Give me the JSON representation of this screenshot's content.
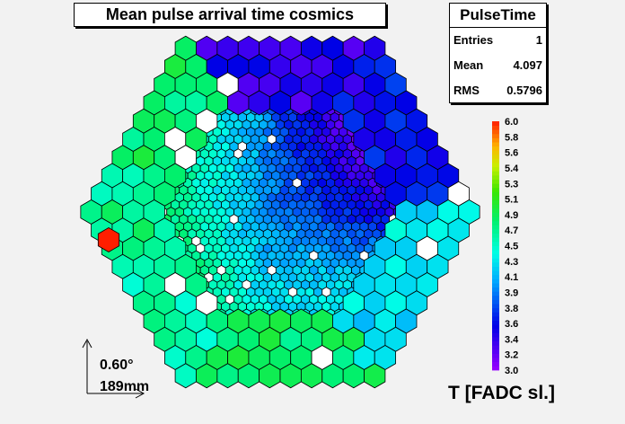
{
  "title": "Mean pulse arrival time cosmics",
  "stats": {
    "name": "PulseTime",
    "rows": [
      {
        "label": "Entries",
        "value": "1"
      },
      {
        "label": "Mean",
        "value": "4.097"
      },
      {
        "label": "RMS",
        "value": "0.5796"
      }
    ]
  },
  "scale": {
    "angle": "0.60°",
    "length": "189mm"
  },
  "axis_label": "T [FADC sl.]",
  "chart_data": {
    "type": "heatmap",
    "title": "Mean pulse arrival time cosmics",
    "zlabel": "T [FADC sl.]",
    "zlim": [
      3.0,
      6.0
    ],
    "palette_ticks": [
      "3.0",
      "3.2",
      "3.4",
      "3.6",
      "3.8",
      "3.9",
      "4.1",
      "4.3",
      "4.5",
      "4.7",
      "4.9",
      "5.1",
      "5.3",
      "5.4",
      "5.6",
      "5.8",
      "6.0"
    ],
    "camera": "hexagonal pixel camera, inner fine pixels, outer coarse pixels",
    "regions": [
      {
        "region": "outer top",
        "value": 3.4
      },
      {
        "region": "outer upper-right",
        "value": 3.6
      },
      {
        "region": "outer upper-left",
        "value": 4.8
      },
      {
        "region": "outer left",
        "value": 4.7
      },
      {
        "region": "outer lower-left",
        "value": 4.6
      },
      {
        "region": "outer bottom",
        "value": 4.8
      },
      {
        "region": "outer lower-right",
        "value": 4.3
      },
      {
        "region": "inner upper-right",
        "value": 3.3
      },
      {
        "region": "inner center",
        "value": 4.0
      },
      {
        "region": "inner left",
        "value": 4.4
      },
      {
        "region": "inner bottom",
        "value": 4.2
      }
    ],
    "hot_pixel": {
      "region": "outer left",
      "value": 6.0
    }
  },
  "colors": {
    "background": "#f2f2f2",
    "empty_pixel": "#ffffff",
    "pixel_outline": "#000000"
  }
}
